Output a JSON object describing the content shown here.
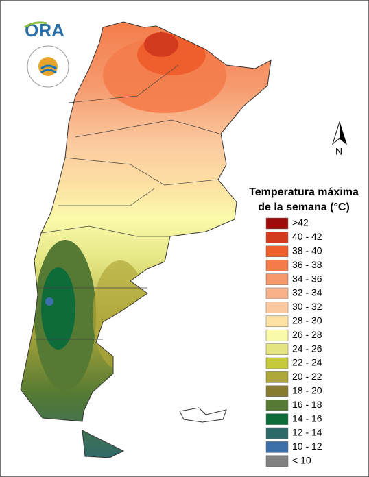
{
  "logo": {
    "text": "ORA"
  },
  "north_arrow": {
    "label": "N"
  },
  "legend": {
    "title": [
      "Temperatura máxima",
      "de la semana (°C)"
    ],
    "items": [
      {
        "label": ">42",
        "color": "#9e0b0b"
      },
      {
        "label": "40 - 42",
        "color": "#d43a1e"
      },
      {
        "label": "38 - 40",
        "color": "#ef5f2d"
      },
      {
        "label": "36 - 38",
        "color": "#f47c4b"
      },
      {
        "label": "34 - 36",
        "color": "#f69a6e"
      },
      {
        "label": "32 - 34",
        "color": "#f8b28b"
      },
      {
        "label": "30 - 32",
        "color": "#fbc99f"
      },
      {
        "label": "28 - 30",
        "color": "#fde2a3"
      },
      {
        "label": "26 - 28",
        "color": "#fafaab"
      },
      {
        "label": "24 - 26",
        "color": "#e4e582"
      },
      {
        "label": "22 - 24",
        "color": "#c6cb3c"
      },
      {
        "label": "20 - 22",
        "color": "#afa73a"
      },
      {
        "label": "18 - 20",
        "color": "#897c2e"
      },
      {
        "label": "16 - 18",
        "color": "#567a33"
      },
      {
        "label": "14 - 16",
        "color": "#0e6b3a"
      },
      {
        "label": "12 - 14",
        "color": "#2f6a6a"
      },
      {
        "label": "10 - 12",
        "color": "#3d6fa8"
      },
      {
        "label": "< 10",
        "color": "#808080"
      }
    ]
  }
}
